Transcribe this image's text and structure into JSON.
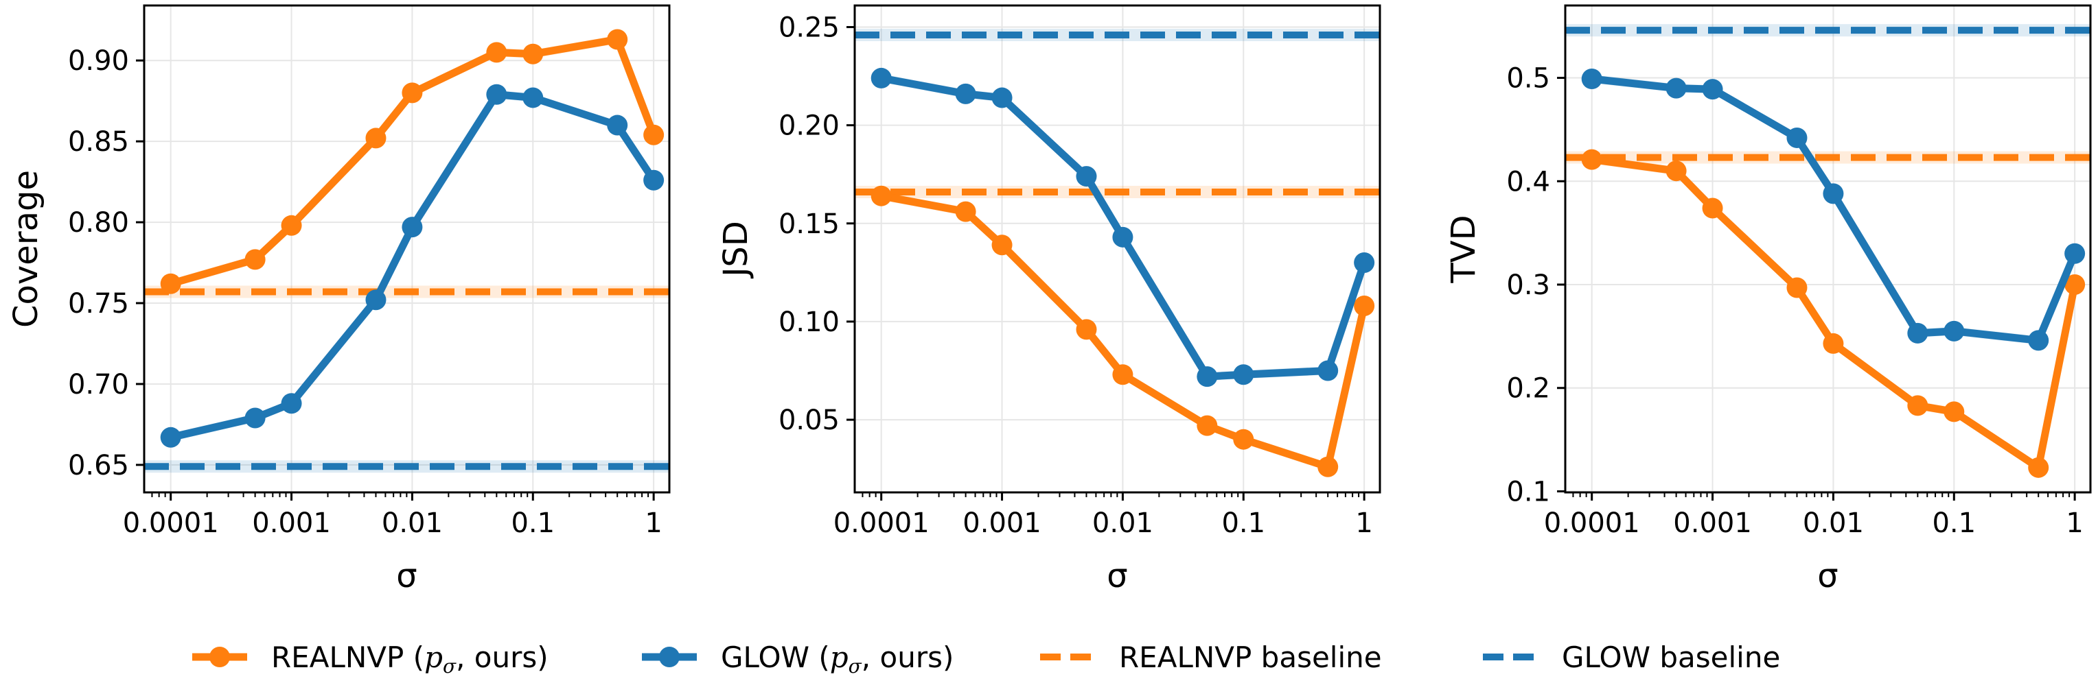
{
  "colors": {
    "realnvp": "#ff7f0e",
    "glow": "#1f77b4"
  },
  "legend": [
    {
      "label": "REALNVP",
      "suffix": ", ours)",
      "style": "solid",
      "color": "#ff7f0e",
      "series": "realnvp"
    },
    {
      "label": "GLOW",
      "suffix": ", ours)",
      "style": "solid",
      "color": "#1f77b4",
      "series": "glow"
    },
    {
      "label": "REALNVP baseline",
      "suffix": "",
      "style": "dashed",
      "color": "#ff7f0e",
      "series": "realnvp_baseline"
    },
    {
      "label": "GLOW baseline",
      "suffix": "",
      "style": "dashed",
      "color": "#1f77b4",
      "series": "glow_baseline"
    }
  ],
  "chart_data": [
    {
      "type": "line",
      "xscale": "log",
      "xlabel": "σ",
      "ylabel": "Coverage",
      "x": [
        0.0001,
        0.0005,
        0.001,
        0.005,
        0.01,
        0.05,
        0.1,
        0.5,
        1
      ],
      "xticks": [
        "0.0001",
        "0.001",
        "0.01",
        "0.1",
        "1"
      ],
      "xtick_values": [
        0.0001,
        0.001,
        0.01,
        0.1,
        1
      ],
      "ylim": [
        0.633,
        0.934
      ],
      "yticks": [
        "0.65",
        "0.70",
        "0.75",
        "0.80",
        "0.85",
        "0.90"
      ],
      "ytick_values": [
        0.65,
        0.7,
        0.75,
        0.8,
        0.85,
        0.9
      ],
      "series": [
        {
          "name": "REALNVP (p_σ, ours)",
          "key": "realnvp",
          "values": [
            0.762,
            0.777,
            0.798,
            0.852,
            0.88,
            0.905,
            0.904,
            0.913,
            0.854
          ]
        },
        {
          "name": "GLOW (p_σ, ours)",
          "key": "glow",
          "values": [
            0.667,
            0.679,
            0.688,
            0.752,
            0.797,
            0.879,
            0.877,
            0.86,
            0.826
          ]
        }
      ],
      "baselines": [
        {
          "name": "REALNVP baseline",
          "key": "realnvp",
          "value": 0.757
        },
        {
          "name": "GLOW baseline",
          "key": "glow",
          "value": 0.649
        }
      ]
    },
    {
      "type": "line",
      "xscale": "log",
      "xlabel": "σ",
      "ylabel": "JSD",
      "x": [
        0.0001,
        0.0005,
        0.001,
        0.005,
        0.01,
        0.05,
        0.1,
        0.5,
        1
      ],
      "xticks": [
        "0.0001",
        "0.001",
        "0.01",
        "0.1",
        "1"
      ],
      "xtick_values": [
        0.0001,
        0.001,
        0.01,
        0.1,
        1
      ],
      "ylim": [
        0.013,
        0.261
      ],
      "yticks": [
        "0.05",
        "0.10",
        "0.15",
        "0.20",
        "0.25"
      ],
      "ytick_values": [
        0.05,
        0.1,
        0.15,
        0.2,
        0.25
      ],
      "series": [
        {
          "name": "REALNVP (p_σ, ours)",
          "key": "realnvp",
          "values": [
            0.164,
            0.156,
            0.139,
            0.096,
            0.073,
            0.047,
            0.04,
            0.026,
            0.108
          ]
        },
        {
          "name": "GLOW (p_σ, ours)",
          "key": "glow",
          "values": [
            0.224,
            0.216,
            0.214,
            0.174,
            0.143,
            0.072,
            0.073,
            0.075,
            0.13
          ]
        }
      ],
      "baselines": [
        {
          "name": "REALNVP baseline",
          "key": "realnvp",
          "value": 0.166
        },
        {
          "name": "GLOW baseline",
          "key": "glow",
          "value": 0.246
        }
      ]
    },
    {
      "type": "line",
      "xscale": "log",
      "xlabel": "σ",
      "ylabel": "TVD",
      "x": [
        0.0001,
        0.0005,
        0.001,
        0.005,
        0.01,
        0.05,
        0.1,
        0.5,
        1
      ],
      "xticks": [
        "0.0001",
        "0.001",
        "0.01",
        "0.1",
        "1"
      ],
      "xtick_values": [
        0.0001,
        0.001,
        0.01,
        0.1,
        1
      ],
      "ylim": [
        0.099,
        0.57
      ],
      "yticks": [
        "0.1",
        "0.2",
        "0.3",
        "0.4",
        "0.5"
      ],
      "ytick_values": [
        0.1,
        0.2,
        0.3,
        0.4,
        0.5
      ],
      "series": [
        {
          "name": "REALNVP (p_σ, ours)",
          "key": "realnvp",
          "values": [
            0.421,
            0.41,
            0.374,
            0.297,
            0.243,
            0.183,
            0.177,
            0.123,
            0.3
          ]
        },
        {
          "name": "GLOW (p_σ, ours)",
          "key": "glow",
          "values": [
            0.499,
            0.49,
            0.489,
            0.442,
            0.388,
            0.253,
            0.255,
            0.246,
            0.33
          ]
        }
      ],
      "baselines": [
        {
          "name": "REALNVP baseline",
          "key": "realnvp",
          "value": 0.423
        },
        {
          "name": "GLOW baseline",
          "key": "glow",
          "value": 0.546
        }
      ]
    }
  ]
}
